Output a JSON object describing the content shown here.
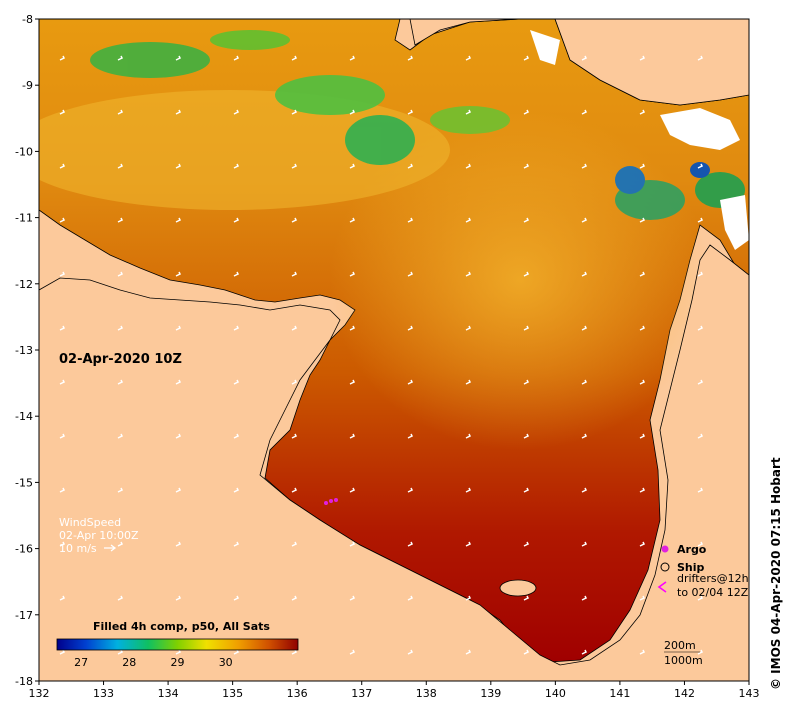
{
  "map": {
    "date_label": "02-Apr-2020 10Z",
    "credit": "© IMOS 04-Apr-2020 07:15 Hobart",
    "lon_ticks": [
      "132",
      "133",
      "134",
      "135",
      "136",
      "137",
      "138",
      "139",
      "140",
      "141",
      "142",
      "143"
    ],
    "lat_ticks": [
      "-8",
      "-9",
      "-10",
      "-11",
      "-12",
      "-13",
      "-14",
      "-15",
      "-16",
      "-17",
      "-18"
    ],
    "lon_range": [
      132,
      143
    ],
    "lat_range": [
      -18,
      -8
    ],
    "wind_legend": {
      "title": "WindSpeed",
      "time": "02-Apr 10:00Z",
      "scale": "10 m/s"
    },
    "symbols_legend": {
      "argo": "Argo",
      "ship": "Ship",
      "drifters_line1": "drifters@12h",
      "drifters_line2": "to 02/04 12Z",
      "argo_color": "#e020e0",
      "drifter_color": "#ff00ff"
    },
    "depth_legend": {
      "line1": "200m",
      "line2": "1000m"
    },
    "colorbar": {
      "title": "Filled 4h comp, p50, All Sats",
      "ticks": [
        "27",
        "28",
        "29",
        "30"
      ],
      "range": [
        26.5,
        31.5
      ]
    },
    "colors": {
      "land": "#fcc99b",
      "hot": "#a80000",
      "warm": "#d86a00",
      "mid": "#f0b000",
      "cool": "#40c040",
      "cold": "#1060c0"
    }
  }
}
